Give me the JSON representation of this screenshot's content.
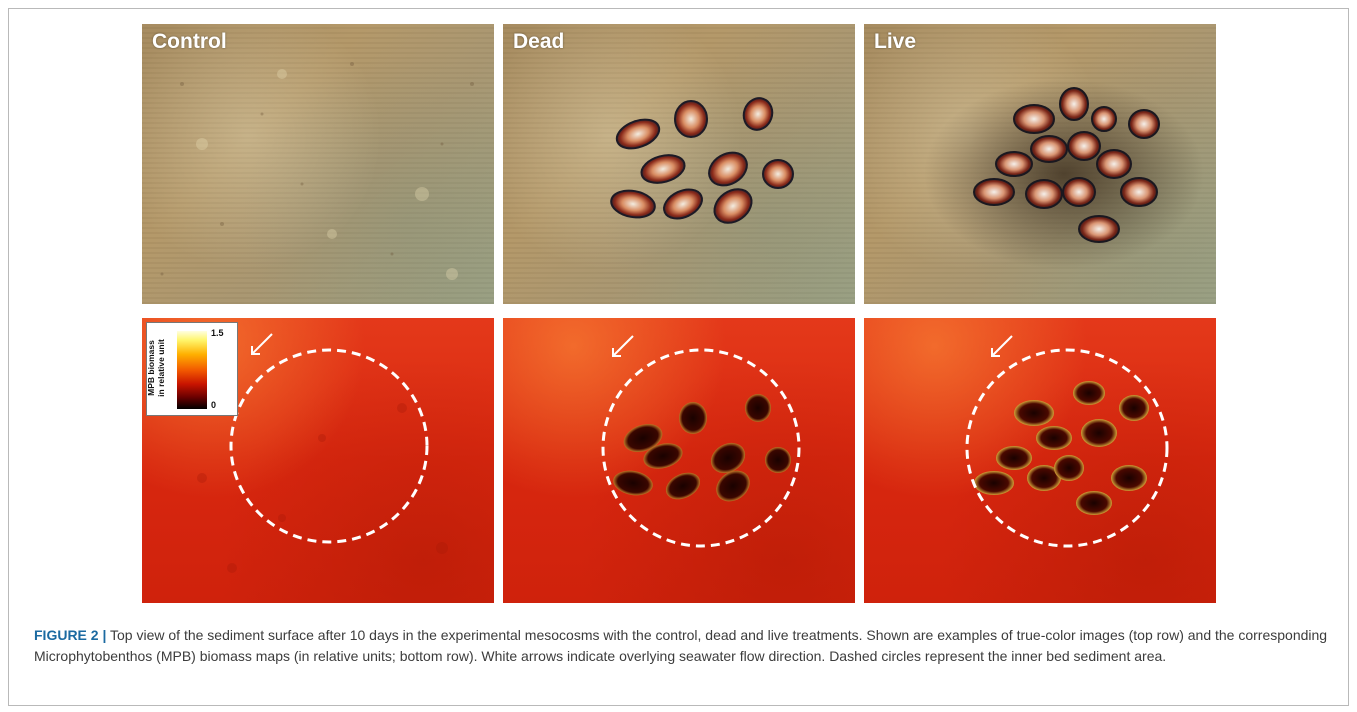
{
  "figure": {
    "panels_top": [
      {
        "label": "Control"
      },
      {
        "label": "Dead"
      },
      {
        "label": "Live"
      }
    ],
    "colorbar": {
      "title_line1": "MPB biomass",
      "title_line2": "in relative unit",
      "max": "1.5",
      "min": "0"
    },
    "caption": {
      "label": "FIGURE 2 |",
      "text": "Top view of the sediment surface after 10 days in the experimental mesocosms with the control, dead and live treatments. Shown are examples of true-color images (top row) and the corresponding Microphytobenthos (MPB) biomass maps (in relative units; bottom row). White arrows indicate overlying seawater flow direction. Dashed circles represent the inner bed sediment area."
    }
  }
}
